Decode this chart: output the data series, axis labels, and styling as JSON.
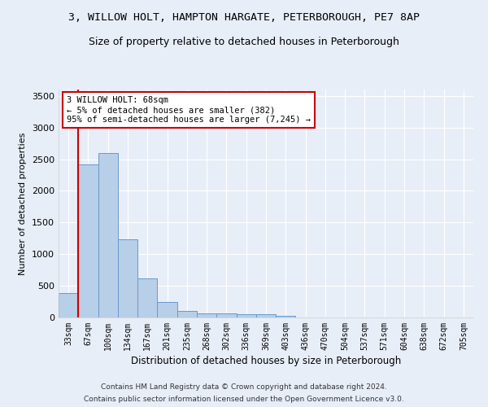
{
  "title_line1": "3, WILLOW HOLT, HAMPTON HARGATE, PETERBOROUGH, PE7 8AP",
  "title_line2": "Size of property relative to detached houses in Peterborough",
  "xlabel": "Distribution of detached houses by size in Peterborough",
  "ylabel": "Number of detached properties",
  "footnote1": "Contains HM Land Registry data © Crown copyright and database right 2024.",
  "footnote2": "Contains public sector information licensed under the Open Government Licence v3.0.",
  "categories": [
    "33sqm",
    "67sqm",
    "100sqm",
    "134sqm",
    "167sqm",
    "201sqm",
    "235sqm",
    "268sqm",
    "302sqm",
    "336sqm",
    "369sqm",
    "403sqm",
    "436sqm",
    "470sqm",
    "504sqm",
    "537sqm",
    "571sqm",
    "604sqm",
    "638sqm",
    "672sqm",
    "705sqm"
  ],
  "values": [
    390,
    2420,
    2600,
    1230,
    620,
    250,
    100,
    70,
    60,
    55,
    50,
    30,
    0,
    0,
    0,
    0,
    0,
    0,
    0,
    0,
    0
  ],
  "bar_color": "#b8cfe8",
  "bar_edge_color": "#6699cc",
  "annotation_text": "3 WILLOW HOLT: 68sqm\n← 5% of detached houses are smaller (382)\n95% of semi-detached houses are larger (7,245) →",
  "annotation_box_color": "#ffffff",
  "annotation_box_edge": "#cc0000",
  "vline_color": "#cc0000",
  "vline_x_index": 1,
  "ylim": [
    0,
    3600
  ],
  "yticks": [
    0,
    500,
    1000,
    1500,
    2000,
    2500,
    3000,
    3500
  ],
  "background_color": "#e8eef8",
  "grid_color": "#ffffff",
  "title_fontsize": 9.5,
  "subtitle_fontsize": 9
}
